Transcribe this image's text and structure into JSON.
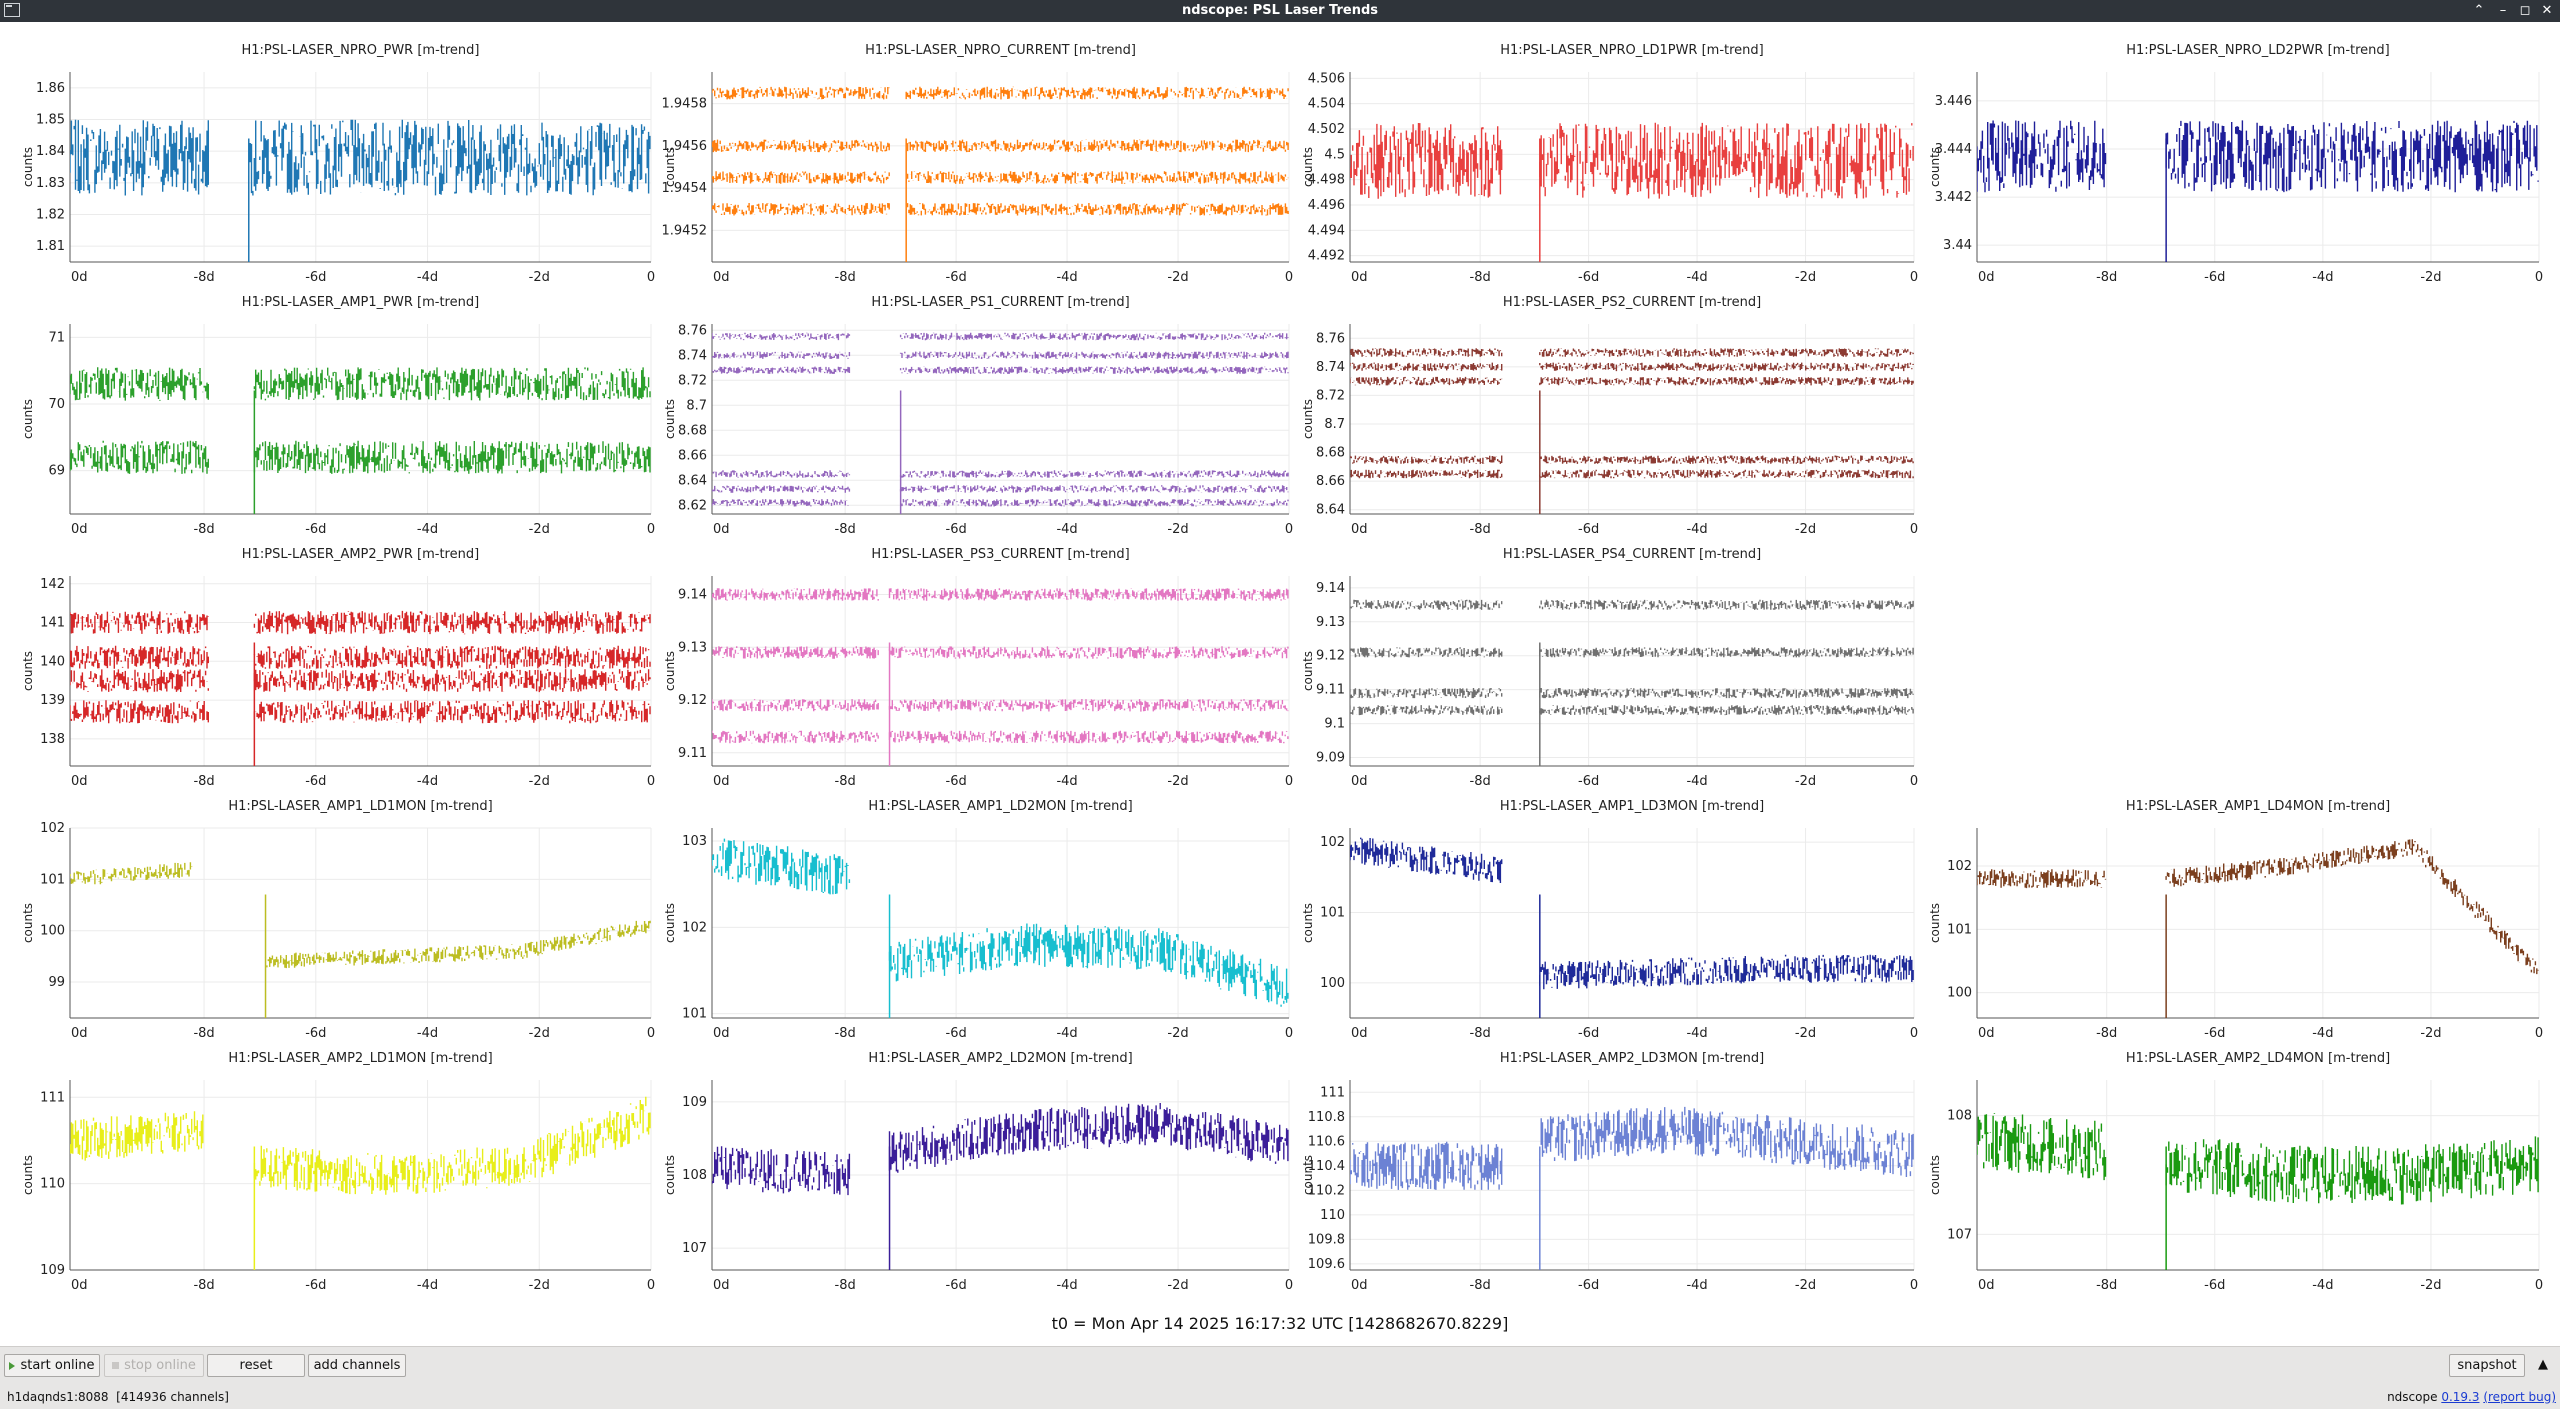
{
  "window": {
    "title": "ndscope: PSL Laser Trends"
  },
  "colors": {
    "titlebar": "#2f343a",
    "toolbar": "#e7e6e5",
    "link": "#1a3bd1"
  },
  "t0_label": "t0 = Mon Apr 14 2025 16:17:32 UTC [1428682670.8229]",
  "toolbar": {
    "start_online": "start online",
    "stop_online": "stop online",
    "reset": "reset",
    "add_channels": "add channels",
    "snapshot": "snapshot"
  },
  "status": {
    "server": "h1daqnds1:8088",
    "channel_count": "[414936 channels]",
    "version_prefix": "ndscope",
    "version": "0.19.3",
    "report_bug": "(report bug)"
  },
  "chart_data": [
    {
      "type": "line",
      "title": "H1:PSL-LASER_NPRO_PWR [m-trend]",
      "ylabel": "counts",
      "color": "#1f77b4",
      "ylim": [
        1.805,
        1.865
      ],
      "yticks": [
        1.81,
        1.82,
        1.83,
        1.84,
        1.85,
        1.86
      ],
      "xticks": [
        "0d",
        "-8d",
        "-6d",
        "-4d",
        "-2d",
        "0"
      ],
      "xlim": [
        -10.4,
        0
      ],
      "gap": [
        -7.9,
        -7.2
      ],
      "levels": [
        1.838
      ],
      "spread": 0.012
    },
    {
      "type": "line",
      "title": "H1:PSL-LASER_NPRO_CURRENT [m-trend]",
      "ylabel": "counts",
      "color": "#ff7f0e",
      "ylim": [
        1.94505,
        1.94595
      ],
      "yticks": [
        1.9452,
        1.9454,
        1.9456,
        1.9458
      ],
      "xticks": [
        "0d",
        "-8d",
        "-6d",
        "-4d",
        "-2d",
        "0"
      ],
      "xlim": [
        -10.4,
        0
      ],
      "gap": [
        -7.2,
        -6.9
      ],
      "levels": [
        1.94585,
        1.9456,
        1.94545,
        1.9453
      ],
      "spread": 3e-05
    },
    {
      "type": "line",
      "title": "H1:PSL-LASER_NPRO_LD1PWR [m-trend]",
      "ylabel": "counts",
      "color": "#e8403f",
      "ylim": [
        4.4915,
        4.5065
      ],
      "yticks": [
        4.492,
        4.494,
        4.496,
        4.498,
        4.5,
        4.502,
        4.504,
        4.506
      ],
      "xticks": [
        "0d",
        "-8d",
        "-6d",
        "-4d",
        "-2d",
        "0"
      ],
      "xlim": [
        -10.4,
        0
      ],
      "gap": [
        -7.6,
        -6.9
      ],
      "levels": [
        4.4995
      ],
      "spread": 0.003
    },
    {
      "type": "line",
      "title": "H1:PSL-LASER_NPRO_LD2PWR [m-trend]",
      "ylabel": "counts",
      "color": "#1f1f99",
      "ylim": [
        3.4393,
        3.4472
      ],
      "yticks": [
        3.44,
        3.442,
        3.444,
        3.446
      ],
      "xticks": [
        "0d",
        "-8d",
        "-6d",
        "-4d",
        "-2d",
        "0"
      ],
      "xlim": [
        -10.4,
        0
      ],
      "gap": [
        -8,
        -6.9
      ],
      "levels": [
        3.4437
      ],
      "spread": 0.0015
    },
    {
      "type": "line",
      "title": "H1:PSL-LASER_AMP1_PWR [m-trend]",
      "ylabel": "counts",
      "color": "#2ca02c",
      "ylim": [
        68.35,
        71.2
      ],
      "yticks": [
        69,
        70,
        71
      ],
      "xticks": [
        "0d",
        "-8d",
        "-6d",
        "-4d",
        "-2d",
        "0"
      ],
      "xlim": [
        -10.4,
        0
      ],
      "gap": [
        -7.9,
        -7.1
      ],
      "levels": [
        70.3,
        69.2
      ],
      "spread": 0.25
    },
    {
      "type": "line",
      "title": "H1:PSL-LASER_PS1_CURRENT [m-trend]",
      "ylabel": "counts",
      "color": "#9467bd",
      "ylim": [
        8.613,
        8.765
      ],
      "yticks": [
        8.62,
        8.64,
        8.66,
        8.68,
        8.7,
        8.72,
        8.74,
        8.76
      ],
      "xticks": [
        "0d",
        "-8d",
        "-6d",
        "-4d",
        "-2d",
        "0"
      ],
      "xlim": [
        -10.4,
        0
      ],
      "gap": [
        -7.9,
        -7.0
      ],
      "levels": [
        8.755,
        8.74,
        8.728,
        8.645,
        8.633,
        8.622
      ],
      "spread": 0.003
    },
    {
      "type": "line",
      "title": "H1:PSL-LASER_PS2_CURRENT [m-trend]",
      "ylabel": "counts",
      "color": "#8c3b33",
      "ylim": [
        8.637,
        8.77
      ],
      "yticks": [
        8.64,
        8.66,
        8.68,
        8.7,
        8.72,
        8.74,
        8.76
      ],
      "xticks": [
        "0d",
        "-8d",
        "-6d",
        "-4d",
        "-2d",
        "0"
      ],
      "xlim": [
        -10.4,
        0
      ],
      "gap": [
        -7.6,
        -6.9
      ],
      "levels": [
        8.75,
        8.74,
        8.73,
        8.675,
        8.665
      ],
      "spread": 0.003
    },
    null,
    {
      "type": "line",
      "title": "H1:PSL-LASER_AMP2_PWR [m-trend]",
      "ylabel": "counts",
      "color": "#d62728",
      "ylim": [
        137.3,
        142.2
      ],
      "yticks": [
        138,
        139,
        140,
        141,
        142
      ],
      "xticks": [
        "0d",
        "-8d",
        "-6d",
        "-4d",
        "-2d",
        "0"
      ],
      "xlim": [
        -10.4,
        0
      ],
      "gap": [
        -7.9,
        -7.1
      ],
      "levels": [
        141,
        140.1,
        139.5,
        138.7
      ],
      "spread": 0.3
    },
    {
      "type": "line",
      "title": "H1:PSL-LASER_PS3_CURRENT [m-trend]",
      "ylabel": "counts",
      "color": "#e377c2",
      "ylim": [
        9.1075,
        9.1435
      ],
      "yticks": [
        9.11,
        9.12,
        9.13,
        9.14
      ],
      "xticks": [
        "0d",
        "-8d",
        "-6d",
        "-4d",
        "-2d",
        "0"
      ],
      "xlim": [
        -10.4,
        0
      ],
      "gap": [
        -7.4,
        -7.2
      ],
      "levels": [
        9.14,
        9.129,
        9.119,
        9.113
      ],
      "spread": 0.0012
    },
    {
      "type": "line",
      "title": "H1:PSL-LASER_PS4_CURRENT [m-trend]",
      "ylabel": "counts",
      "color": "#707070",
      "ylim": [
        9.0875,
        9.1435
      ],
      "yticks": [
        9.09,
        9.1,
        9.11,
        9.12,
        9.13,
        9.14
      ],
      "xticks": [
        "0d",
        "-8d",
        "-6d",
        "-4d",
        "-2d",
        "0"
      ],
      "xlim": [
        -10.4,
        0
      ],
      "gap": [
        -7.6,
        -6.9
      ],
      "levels": [
        9.135,
        9.121,
        9.109,
        9.104
      ],
      "spread": 0.0015
    },
    null,
    {
      "type": "line",
      "title": "H1:PSL-LASER_AMP1_LD1MON [m-trend]",
      "ylabel": "counts",
      "color": "#bcbd22",
      "ylim": [
        98.3,
        102
      ],
      "yticks": [
        99,
        100,
        101,
        102
      ],
      "xticks": [
        "0d",
        "-8d",
        "-6d",
        "-4d",
        "-2d",
        "0"
      ],
      "xlim": [
        -10.4,
        0
      ],
      "gap": [
        -8.2,
        -6.9
      ],
      "seg1": [
        101,
        101.2
      ],
      "seg2": [
        99.4,
        99.5,
        99.6,
        100.1
      ],
      "spread": 0.15
    },
    {
      "type": "line",
      "title": "H1:PSL-LASER_AMP1_LD2MON [m-trend]",
      "ylabel": "counts",
      "color": "#17becf",
      "ylim": [
        100.95,
        103.15
      ],
      "yticks": [
        101,
        102,
        103
      ],
      "xticks": [
        "0d",
        "-8d",
        "-6d",
        "-4d",
        "-2d",
        "0"
      ],
      "xlim": [
        -10.4,
        0
      ],
      "gap": [
        -7.9,
        -7.2
      ],
      "seg1": [
        102.8,
        102.6
      ],
      "seg2": [
        101.6,
        101.8,
        101.75,
        101.3
      ],
      "spread": 0.25
    },
    {
      "type": "line",
      "title": "H1:PSL-LASER_AMP1_LD3MON [m-trend]",
      "ylabel": "counts",
      "color": "#1f2a99",
      "ylim": [
        99.5,
        102.2
      ],
      "yticks": [
        100,
        101,
        102
      ],
      "xticks": [
        "0d",
        "-8d",
        "-6d",
        "-4d",
        "-2d",
        "0"
      ],
      "xlim": [
        -10.4,
        0
      ],
      "gap": [
        -7.6,
        -6.9
      ],
      "seg1": [
        101.9,
        101.6
      ],
      "seg2": [
        100.1,
        100.15,
        100.2,
        100.2
      ],
      "spread": 0.2
    },
    {
      "type": "line",
      "title": "H1:PSL-LASER_AMP1_LD4MON [m-trend]",
      "ylabel": "counts",
      "color": "#7b3f1e",
      "ylim": [
        99.6,
        102.6
      ],
      "yticks": [
        100,
        101,
        102
      ],
      "xticks": [
        "0d",
        "-8d",
        "-6d",
        "-4d",
        "-2d",
        "0"
      ],
      "xlim": [
        -10.4,
        0
      ],
      "gap": [
        -8,
        -6.9
      ],
      "seg1": [
        101.8,
        101.8
      ],
      "seg2": [
        101.8,
        102,
        102.3,
        100.3
      ],
      "spread": 0.15
    },
    {
      "type": "line",
      "title": "H1:PSL-LASER_AMP2_LD1MON [m-trend]",
      "ylabel": "counts",
      "color": "#e8ee1a",
      "ylim": [
        109,
        111.2
      ],
      "yticks": [
        109,
        110,
        111
      ],
      "xticks": [
        "0d",
        "-8d",
        "-6d",
        "-4d",
        "-2d",
        "0"
      ],
      "xlim": [
        -10.4,
        0
      ],
      "gap": [
        -8,
        -7.1
      ],
      "seg1": [
        110.5,
        110.6
      ],
      "seg2": [
        110.2,
        110.1,
        110.2,
        110.8
      ],
      "spread": 0.25
    },
    {
      "type": "line",
      "title": "H1:PSL-LASER_AMP2_LD2MON [m-trend]",
      "ylabel": "counts",
      "color": "#3b1e99",
      "ylim": [
        106.7,
        109.3
      ],
      "yticks": [
        107,
        108,
        109
      ],
      "xticks": [
        "0d",
        "-8d",
        "-6d",
        "-4d",
        "-2d",
        "0"
      ],
      "xlim": [
        -10.4,
        0
      ],
      "gap": [
        -7.9,
        -7.2
      ],
      "seg1": [
        108.1,
        108.0
      ],
      "seg2": [
        108.3,
        108.6,
        108.7,
        108.4
      ],
      "spread": 0.3
    },
    {
      "type": "line",
      "title": "H1:PSL-LASER_AMP2_LD3MON [m-trend]",
      "ylabel": "counts",
      "color": "#6c82d4",
      "ylim": [
        109.55,
        111.1
      ],
      "yticks": [
        109.6,
        109.8,
        110,
        110.2,
        110.4,
        110.6,
        110.8,
        111
      ],
      "xticks": [
        "0d",
        "-8d",
        "-6d",
        "-4d",
        "-2d",
        "0"
      ],
      "xlim": [
        -10.4,
        0
      ],
      "gap": [
        -7.6,
        -6.9
      ],
      "seg1": [
        110.4,
        110.4
      ],
      "seg2": [
        110.6,
        110.7,
        110.6,
        110.5
      ],
      "spread": 0.2
    },
    {
      "type": "line",
      "title": "H1:PSL-LASER_AMP2_LD4MON [m-trend]",
      "ylabel": "counts",
      "color": "#1a9a10",
      "ylim": [
        106.7,
        108.3
      ],
      "yticks": [
        107,
        108
      ],
      "xticks": [
        "0d",
        "-8d",
        "-6d",
        "-4d",
        "-2d",
        "0"
      ],
      "xlim": [
        -10.4,
        0
      ],
      "gap": [
        -8,
        -6.9
      ],
      "seg1": [
        107.8,
        107.7
      ],
      "seg2": [
        107.6,
        107.5,
        107.5,
        107.6
      ],
      "spread": 0.25
    }
  ]
}
